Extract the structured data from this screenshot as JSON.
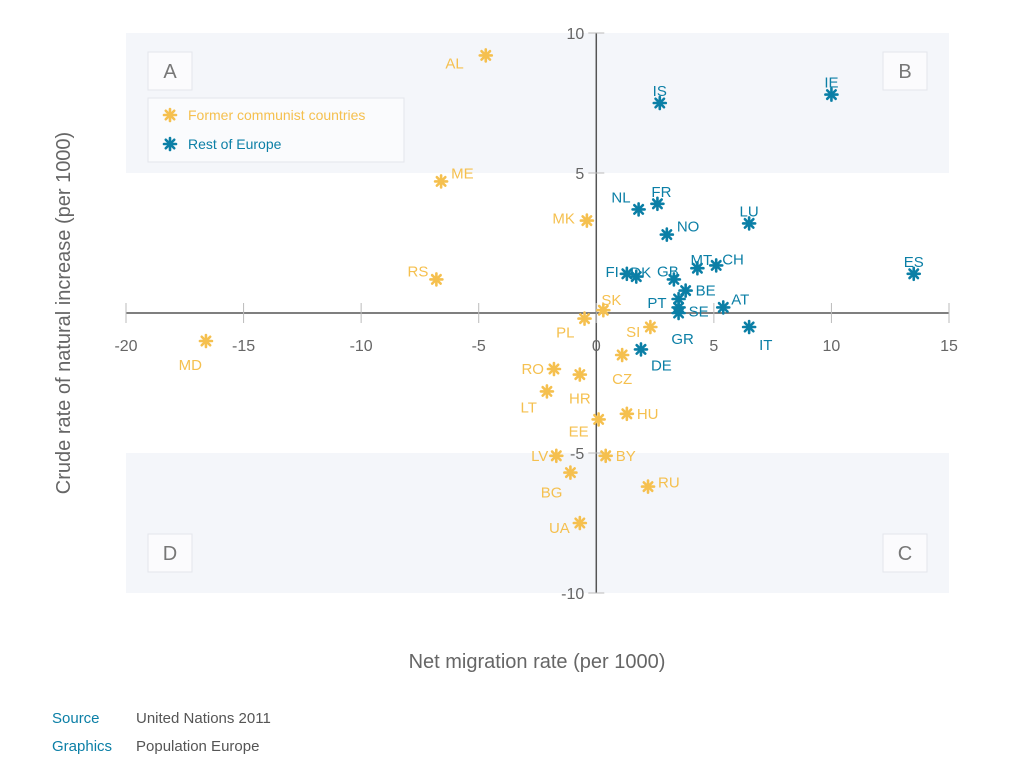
{
  "chart_data": {
    "type": "scatter",
    "xlabel": "Net migration rate (per 1000)",
    "ylabel": "Crude rate of natural increase (per 1000)",
    "xlim": [
      -20,
      15
    ],
    "ylim": [
      -10,
      10
    ],
    "xticks": [
      -20,
      -15,
      -10,
      -5,
      0,
      5,
      10,
      15
    ],
    "yticks": [
      10,
      5,
      -5,
      -10
    ],
    "quadrants": [
      "A",
      "B",
      "C",
      "D"
    ],
    "grid": false,
    "legend_position": "top-left",
    "series": [
      {
        "name": "Former communist countries",
        "color": "#F5C04F",
        "points": [
          {
            "label": "AL",
            "x": -4.7,
            "y": 9.2
          },
          {
            "label": "ME",
            "x": -6.6,
            "y": 4.7
          },
          {
            "label": "MK",
            "x": -0.4,
            "y": 3.3
          },
          {
            "label": "RS",
            "x": -6.8,
            "y": 1.2
          },
          {
            "label": "MD",
            "x": -16.6,
            "y": -1.0
          },
          {
            "label": "SK",
            "x": 0.3,
            "y": 0.1
          },
          {
            "label": "PL",
            "x": -0.5,
            "y": -0.2
          },
          {
            "label": "SI",
            "x": 2.3,
            "y": -0.5
          },
          {
            "label": "CZ",
            "x": 1.1,
            "y": -1.5
          },
          {
            "label": "RO",
            "x": -1.8,
            "y": -2.0
          },
          {
            "label": "HR",
            "x": -0.7,
            "y": -2.2
          },
          {
            "label": "LT",
            "x": -2.1,
            "y": -2.8
          },
          {
            "label": "HU",
            "x": 1.3,
            "y": -3.6
          },
          {
            "label": "EE",
            "x": 0.1,
            "y": -3.8
          },
          {
            "label": "LV",
            "x": -1.7,
            "y": -5.1
          },
          {
            "label": "BY",
            "x": 0.4,
            "y": -5.1
          },
          {
            "label": "BG",
            "x": -1.1,
            "y": -5.7
          },
          {
            "label": "RU",
            "x": 2.2,
            "y": -6.2
          },
          {
            "label": "UA",
            "x": -0.7,
            "y": -7.5
          }
        ]
      },
      {
        "name": "Rest of Europe",
        "color": "#0B7FA6",
        "points": [
          {
            "label": "IS",
            "x": 2.7,
            "y": 7.5
          },
          {
            "label": "IE",
            "x": 10.0,
            "y": 7.8
          },
          {
            "label": "NL",
            "x": 1.8,
            "y": 3.7
          },
          {
            "label": "FR",
            "x": 2.6,
            "y": 3.9
          },
          {
            "label": "NO",
            "x": 3.0,
            "y": 2.8
          },
          {
            "label": "LU",
            "x": 6.5,
            "y": 3.2
          },
          {
            "label": "MT",
            "x": 4.3,
            "y": 1.6
          },
          {
            "label": "CH",
            "x": 5.1,
            "y": 1.7
          },
          {
            "label": "ES",
            "x": 13.5,
            "y": 1.4
          },
          {
            "label": "FI",
            "x": 1.3,
            "y": 1.4
          },
          {
            "label": "DK",
            "x": 1.7,
            "y": 1.3
          },
          {
            "label": "GB",
            "x": 3.3,
            "y": 1.2
          },
          {
            "label": "BE",
            "x": 3.8,
            "y": 0.8
          },
          {
            "label": "PT",
            "x": 3.5,
            "y": 0.5
          },
          {
            "label": "SE",
            "x": 3.5,
            "y": 0.2
          },
          {
            "label": "AT",
            "x": 5.4,
            "y": 0.2
          },
          {
            "label": "GR",
            "x": 3.5,
            "y": 0.0
          },
          {
            "label": "IT",
            "x": 6.5,
            "y": -0.5
          },
          {
            "label": "DE",
            "x": 1.9,
            "y": -1.3
          }
        ]
      }
    ]
  },
  "footer": {
    "source_key": "Source",
    "source_value": "United Nations 2011",
    "graphics_key": "Graphics",
    "graphics_value": "Population Europe"
  },
  "colors": {
    "accent_blue": "#0B7FA6",
    "accent_yellow": "#F5C04F",
    "quadrant_fill": "#F4F6FA",
    "axis": "#555555"
  }
}
